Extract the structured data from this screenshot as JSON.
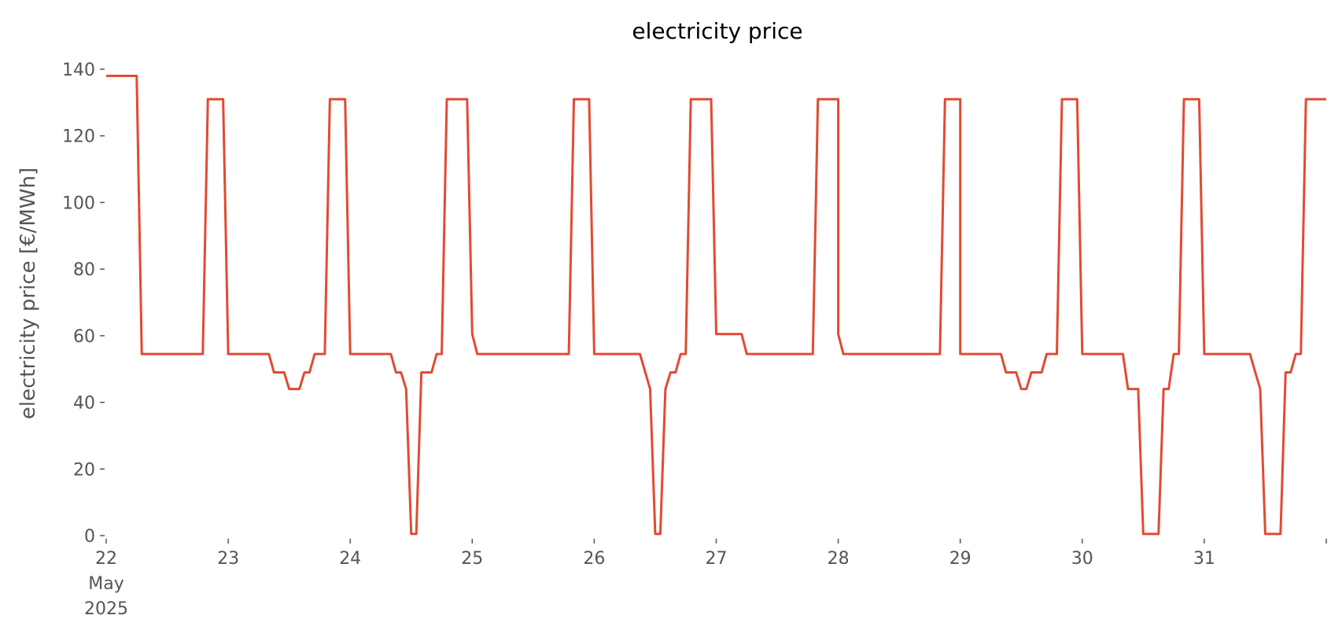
{
  "chart_data": {
    "type": "line",
    "title": "electricity price",
    "ylabel": "electricity price [€/MWh]",
    "xlabel": "",
    "grid": false,
    "ylim": [
      0,
      140
    ],
    "y_ticks": [
      0,
      20,
      40,
      60,
      80,
      100,
      120,
      140
    ],
    "x_range_hours": [
      0,
      240
    ],
    "x_ticks": [
      {
        "hour": 0,
        "lines": [
          "22",
          "May",
          "2025"
        ]
      },
      {
        "hour": 24,
        "lines": [
          "23"
        ]
      },
      {
        "hour": 48,
        "lines": [
          "24"
        ]
      },
      {
        "hour": 72,
        "lines": [
          "25"
        ]
      },
      {
        "hour": 96,
        "lines": [
          "26"
        ]
      },
      {
        "hour": 120,
        "lines": [
          "27"
        ]
      },
      {
        "hour": 144,
        "lines": [
          "28"
        ]
      },
      {
        "hour": 168,
        "lines": [
          "29"
        ]
      },
      {
        "hour": 192,
        "lines": [
          "30"
        ]
      },
      {
        "hour": 216,
        "lines": [
          "31"
        ]
      },
      {
        "hour": 240,
        "lines": [
          ""
        ]
      }
    ],
    "series": [
      {
        "color": "#e24a33",
        "points": [
          [
            0,
            138
          ],
          [
            6,
            138
          ],
          [
            7,
            54.5
          ],
          [
            19,
            54.5
          ],
          [
            20,
            131
          ],
          [
            23,
            131
          ],
          [
            24,
            54.5
          ],
          [
            32,
            54.5
          ],
          [
            33,
            49
          ],
          [
            35,
            49
          ],
          [
            36,
            44
          ],
          [
            38,
            44
          ],
          [
            39,
            49
          ],
          [
            40,
            49
          ],
          [
            41,
            54.5
          ],
          [
            43,
            54.5
          ],
          [
            44,
            131
          ],
          [
            47,
            131
          ],
          [
            48,
            54.5
          ],
          [
            56,
            54.5
          ],
          [
            57,
            49
          ],
          [
            58,
            49
          ],
          [
            59,
            44
          ],
          [
            60,
            0.5
          ],
          [
            61,
            0.5
          ],
          [
            62,
            49
          ],
          [
            64,
            49
          ],
          [
            65,
            54.5
          ],
          [
            66,
            54.5
          ],
          [
            67,
            131
          ],
          [
            71,
            131
          ],
          [
            72,
            60.5
          ],
          [
            73,
            54.5
          ],
          [
            91,
            54.5
          ],
          [
            92,
            131
          ],
          [
            95,
            131
          ],
          [
            96,
            54.5
          ],
          [
            105,
            54.5
          ],
          [
            107,
            44
          ],
          [
            108,
            0.5
          ],
          [
            109,
            0.5
          ],
          [
            110,
            44
          ],
          [
            111,
            49
          ],
          [
            112,
            49
          ],
          [
            113,
            54.5
          ],
          [
            114,
            54.5
          ],
          [
            115,
            131
          ],
          [
            119,
            131
          ],
          [
            120,
            60.5
          ],
          [
            125,
            60.5
          ],
          [
            126,
            54.5
          ],
          [
            139,
            54.5
          ],
          [
            140,
            131
          ],
          [
            144,
            131
          ],
          [
            144,
            60.5
          ],
          [
            145,
            54.5
          ],
          [
            164,
            54.5
          ],
          [
            165,
            131
          ],
          [
            168,
            131
          ],
          [
            168,
            54.5
          ],
          [
            176,
            54.5
          ],
          [
            177,
            49
          ],
          [
            179,
            49
          ],
          [
            180,
            44
          ],
          [
            181,
            44
          ],
          [
            182,
            49
          ],
          [
            184,
            49
          ],
          [
            185,
            54.5
          ],
          [
            187,
            54.5
          ],
          [
            188,
            131
          ],
          [
            191,
            131
          ],
          [
            192,
            54.5
          ],
          [
            200,
            54.5
          ],
          [
            201,
            44
          ],
          [
            203,
            44
          ],
          [
            204,
            0.5
          ],
          [
            207,
            0.5
          ],
          [
            208,
            44
          ],
          [
            209,
            44
          ],
          [
            210,
            54.5
          ],
          [
            211,
            54.5
          ],
          [
            212,
            131
          ],
          [
            215,
            131
          ],
          [
            216,
            54.5
          ],
          [
            225,
            54.5
          ],
          [
            227,
            44
          ],
          [
            228,
            0.5
          ],
          [
            231,
            0.5
          ],
          [
            232,
            49
          ],
          [
            233,
            49
          ],
          [
            234,
            54.5
          ],
          [
            235,
            54.5
          ],
          [
            236,
            131
          ],
          [
            240,
            131
          ]
        ]
      }
    ]
  }
}
